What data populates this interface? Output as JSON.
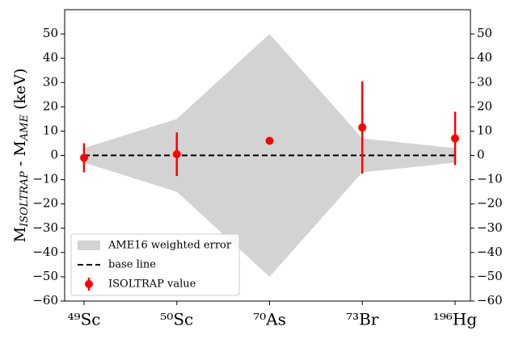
{
  "chart_data": {
    "type": "errorbar",
    "categories": [
      "⁴⁹Sc",
      "⁵⁰Sc",
      "⁷⁰As",
      "⁷³Br",
      "¹⁹⁶Hg"
    ],
    "ylabel": [
      "M",
      "ISOLTRAP",
      " - M",
      "AME",
      " (keV)"
    ],
    "ylim": [
      -60,
      60
    ],
    "yticks": [
      {
        "value": -60,
        "label": "−60"
      },
      {
        "value": -50,
        "label": "−50"
      },
      {
        "value": -40,
        "label": "−40"
      },
      {
        "value": -30,
        "label": "−30"
      },
      {
        "value": -20,
        "label": "−20"
      },
      {
        "value": -10,
        "label": "−10"
      },
      0,
      10,
      20,
      30,
      40,
      50
    ],
    "y2lim": [
      -60,
      60
    ],
    "y2ticks": [
      {
        "value": -60,
        "label": "−60"
      },
      {
        "value": -50,
        "label": "−50"
      },
      {
        "value": -40,
        "label": "−40"
      },
      {
        "value": -30,
        "label": "−30"
      },
      {
        "value": -20,
        "label": "−20"
      },
      {
        "value": -10,
        "label": "−10"
      },
      0,
      10,
      20,
      30,
      40,
      50
    ],
    "legend": "lower left",
    "series": [
      {
        "name": "AME16 weighted error",
        "kind": "band",
        "color": "#d3d3d3",
        "values": [
          3,
          15,
          50,
          7,
          3
        ]
      },
      {
        "name": "base line",
        "kind": "dashed",
        "color": "#000000",
        "values": [
          0,
          0,
          0,
          0,
          0
        ]
      },
      {
        "name": "ISOLTRAP value",
        "kind": "errorbar",
        "color": "#ff0000",
        "values": [
          -1,
          0.5,
          6,
          11.5,
          7
        ],
        "errors": [
          6,
          9,
          null,
          19,
          11
        ]
      }
    ]
  }
}
